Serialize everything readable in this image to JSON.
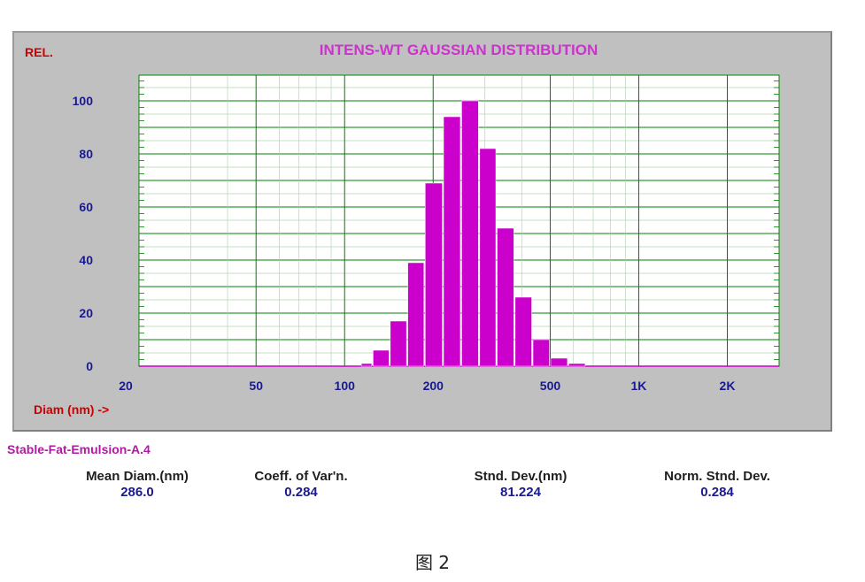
{
  "chart_data": {
    "type": "bar",
    "title": "INTENS-WT GAUSSIAN DISTRIBUTION",
    "ylabel": "REL.",
    "xlabel": "Diam (nm) ->",
    "x_scale": "log",
    "xlim": [
      20,
      3000
    ],
    "ylim": [
      0,
      100
    ],
    "x_ticks": [
      {
        "value": 20,
        "label": "20"
      },
      {
        "value": 50,
        "label": "50"
      },
      {
        "value": 100,
        "label": "100"
      },
      {
        "value": 200,
        "label": "200"
      },
      {
        "value": 500,
        "label": "500"
      },
      {
        "value": 1000,
        "label": "1K"
      },
      {
        "value": 2000,
        "label": "2K"
      }
    ],
    "y_ticks": [
      0,
      20,
      40,
      60,
      80,
      100
    ],
    "grid": true,
    "bars": [
      {
        "x0": 114,
        "x1": 125,
        "value": 1
      },
      {
        "x0": 125,
        "x1": 143,
        "value": 6
      },
      {
        "x0": 143,
        "x1": 164,
        "value": 17
      },
      {
        "x0": 164,
        "x1": 188,
        "value": 39
      },
      {
        "x0": 188,
        "x1": 217,
        "value": 69
      },
      {
        "x0": 217,
        "x1": 250,
        "value": 94
      },
      {
        "x0": 250,
        "x1": 288,
        "value": 100
      },
      {
        "x0": 288,
        "x1": 330,
        "value": 82
      },
      {
        "x0": 330,
        "x1": 380,
        "value": 52
      },
      {
        "x0": 380,
        "x1": 437,
        "value": 26
      },
      {
        "x0": 437,
        "x1": 502,
        "value": 10
      },
      {
        "x0": 502,
        "x1": 578,
        "value": 3
      },
      {
        "x0": 578,
        "x1": 664,
        "value": 1
      }
    ]
  },
  "sample_name": "Stable-Fat-Emulsion-A.4",
  "stats": [
    {
      "label": "Mean Diam.(nm)",
      "value": "286.0"
    },
    {
      "label": "Coeff. of Var'n.",
      "value": "0.284"
    },
    {
      "label": "Stnd. Dev.(nm)",
      "value": "81.224"
    },
    {
      "label": "Norm. Stnd. Dev.",
      "value": "0.284"
    }
  ],
  "caption": "图 2",
  "colors": {
    "bar": "#cc00cc",
    "grid": "#008000",
    "title": "#cc33cc",
    "axis_label": "#cc0000",
    "tick_label": "#1a1a90",
    "panel": "#c0c0c0"
  }
}
